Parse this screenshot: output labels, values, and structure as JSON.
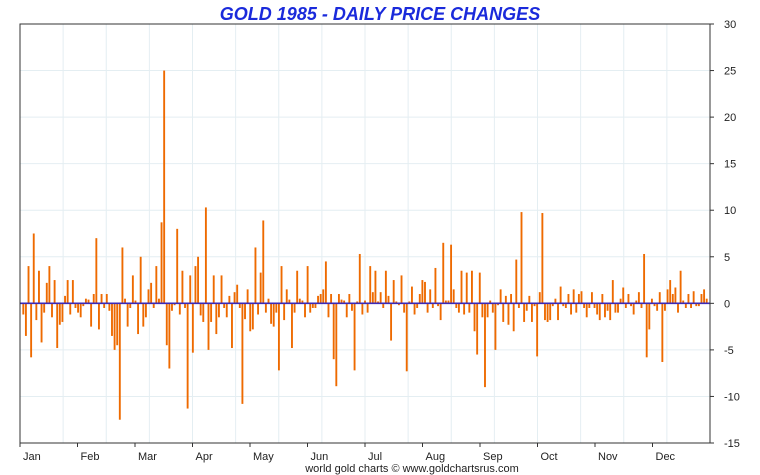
{
  "chart_data": {
    "type": "bar",
    "title": "GOLD 1985 - DAILY PRICE CHANGES",
    "footer": "world gold charts © www.goldchartsrus.com",
    "ylim": [
      -15,
      30
    ],
    "y_ticks": [
      30,
      25,
      20,
      15,
      10,
      5,
      0,
      -5,
      -10,
      -15
    ],
    "y_axis_position": "right",
    "grid": true,
    "x_tick_labels": [
      "Jan",
      "Feb",
      "Mar",
      "Apr",
      "May",
      "Jun",
      "Jul",
      "Aug",
      "Sep",
      "Oct",
      "Nov",
      "Dec"
    ],
    "colors": {
      "bars": "#ee6a00",
      "zero_line": "#3b2ab8",
      "title": "#1a2adb",
      "grid": "#e4eef2"
    },
    "series": [
      {
        "values": [
          -1.2,
          -3.5,
          4.0,
          -5.8,
          7.5,
          -1.8,
          3.5,
          -4.2,
          -1.0,
          2.2,
          4.0,
          -1.5,
          2.5,
          -4.8,
          -2.3,
          -2.0,
          0.8,
          2.5,
          -1.2,
          2.5,
          -0.5,
          -1.0,
          -1.5,
          -0.3,
          0.5,
          0.4,
          -2.5,
          1.0,
          7.0,
          -2.8,
          1.0,
          -0.5,
          1.0,
          -0.8,
          -3.5,
          -5.0,
          -4.5,
          -12.5,
          6.0,
          0.5,
          -2.5,
          -0.5,
          3.0,
          0.3,
          -3.3,
          5.0,
          -2.5,
          -1.5,
          1.5,
          2.2,
          -0.5,
          4.0,
          0.5,
          8.7,
          25.0,
          -4.5,
          -7.0,
          -0.8,
          -0.2,
          8.0,
          -1.2,
          3.5,
          -0.5,
          -11.3,
          3.0,
          -5.3,
          4.0,
          5.0,
          -1.3,
          -2.0,
          10.3,
          -5.0,
          -2.0,
          3.0,
          -3.3,
          -1.5,
          3.0,
          -0.5,
          -1.5,
          0.8,
          -4.8,
          1.2,
          2.0,
          -0.5,
          -10.8,
          -1.7,
          1.5,
          -3.0,
          -2.8,
          6.0,
          -1.2,
          3.3,
          8.9,
          -1.0,
          0.5,
          -2.2,
          -2.5,
          -1.0,
          -7.2,
          4.0,
          -1.8,
          1.5,
          0.4,
          -4.8,
          -1.0,
          3.5,
          0.5,
          0.3,
          -1.5,
          4.0,
          -1.0,
          -0.5,
          -0.5,
          0.8,
          1.0,
          1.5,
          4.5,
          -1.5,
          1.0,
          -6.0,
          -8.9,
          1.0,
          0.4,
          0.3,
          -1.5,
          1.0,
          -0.8,
          -7.2,
          0.2,
          5.3,
          -1.2,
          0.3,
          -1.0,
          4.0,
          1.2,
          3.5,
          0.2,
          1.2,
          -0.5,
          3.5,
          0.8,
          -4.0,
          2.5,
          0.2,
          -0.2,
          3.0,
          -1.0,
          -7.3,
          0.2,
          1.8,
          -1.2,
          -0.5,
          1.0,
          2.5,
          2.3,
          -1.0,
          1.5,
          -0.5,
          3.8,
          -0.3,
          -1.8,
          6.5,
          0.3,
          0.3,
          6.3,
          1.5,
          -0.5,
          -1.0,
          3.5,
          -1.2,
          3.3,
          -1.0,
          3.5,
          -3.0,
          -5.5,
          3.3,
          -1.5,
          -9.0,
          -1.5,
          0.3,
          -1.0,
          -5.0,
          -0.2,
          1.5,
          -2.0,
          0.8,
          -2.3,
          1.0,
          -3.0,
          4.7,
          -0.5,
          9.8,
          -2.0,
          -0.8,
          0.8,
          -2.0,
          -0.3,
          -5.7,
          1.2,
          9.7,
          -1.8,
          -2.0,
          -1.8,
          -0.3,
          0.5,
          -1.8,
          1.8,
          -0.3,
          -0.5,
          1.0,
          -1.2,
          1.5,
          -1.0,
          1.0,
          1.3,
          -0.5,
          -1.5,
          -0.5,
          1.2,
          -0.5,
          -1.2,
          -1.8,
          1.0,
          -1.5,
          -0.8,
          -1.8,
          2.5,
          -1.0,
          -1.0,
          0.5,
          1.7,
          -0.5,
          1.0,
          -0.3,
          -1.2,
          0.3,
          1.2,
          -0.5,
          5.3,
          -5.8,
          -2.8,
          0.5,
          -0.3,
          -0.8,
          1.2,
          -6.3,
          -0.8,
          1.5,
          2.5,
          1.0,
          1.7,
          -1.0,
          3.5,
          0.3,
          -0.5,
          1.0,
          -0.5,
          1.3,
          -0.3,
          -0.3,
          1.0,
          1.5,
          0.5
        ]
      }
    ]
  }
}
